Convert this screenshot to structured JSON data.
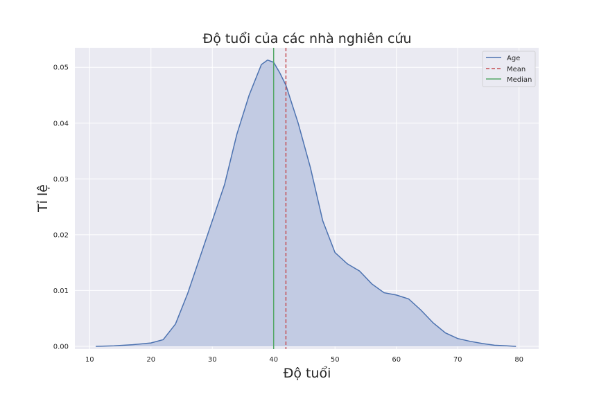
{
  "chart_data": {
    "type": "area",
    "title": "Độ tuổi của các nhà nghiên cứu",
    "xlabel": "Độ tuổi",
    "ylabel": "Tỉ lệ",
    "xlim": [
      7.6,
      83.2
    ],
    "ylim": [
      -0.0005,
      0.0535
    ],
    "xticks": [
      10,
      20,
      30,
      40,
      50,
      60,
      70,
      80
    ],
    "yticks": [
      0.0,
      0.01,
      0.02,
      0.03,
      0.04,
      0.05
    ],
    "ytick_labels": [
      "0.00",
      "0.01",
      "0.02",
      "0.03",
      "0.04",
      "0.05"
    ],
    "grid": true,
    "legend_position": "top-right",
    "colors": {
      "background": "#eaeaf2",
      "grid": "#ffffff",
      "kde_line": "#4c72b0",
      "kde_fill": "#c2cbe3",
      "mean": "#c44e52",
      "median": "#55a868"
    },
    "legend": [
      {
        "label": "Age",
        "style": "solid",
        "color_key": "kde_line"
      },
      {
        "label": "Mean",
        "style": "dashed",
        "color_key": "mean"
      },
      {
        "label": "Median",
        "style": "solid",
        "color_key": "median"
      }
    ],
    "mean": 42,
    "median": 40,
    "kde": {
      "x": [
        11,
        14,
        17,
        20,
        22,
        24,
        26,
        28,
        30,
        32,
        34,
        36,
        38,
        39,
        40,
        41,
        42,
        44,
        46,
        48,
        50,
        52,
        54,
        56,
        58,
        60,
        62,
        64,
        66,
        68,
        70,
        72,
        74,
        76,
        78,
        79.5
      ],
      "y": [
        0.0,
        0.0001,
        0.0003,
        0.0006,
        0.0012,
        0.004,
        0.0095,
        0.016,
        0.0225,
        0.029,
        0.038,
        0.045,
        0.0505,
        0.0513,
        0.0509,
        0.049,
        0.0468,
        0.04,
        0.032,
        0.0225,
        0.0168,
        0.0148,
        0.0135,
        0.0112,
        0.0096,
        0.0092,
        0.0085,
        0.0065,
        0.0042,
        0.0024,
        0.0014,
        0.0009,
        0.0005,
        0.0002,
        0.0001,
        0.0
      ]
    }
  }
}
